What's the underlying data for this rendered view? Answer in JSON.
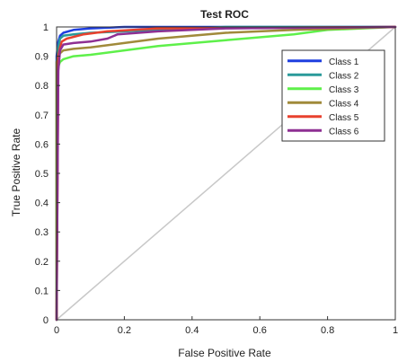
{
  "chart_data": {
    "type": "line",
    "title": "Test ROC",
    "xlabel": "False Positive Rate",
    "ylabel": "True Positive Rate",
    "xlim": [
      0,
      1
    ],
    "ylim": [
      0,
      1
    ],
    "x_ticks": [
      "0",
      "0.2",
      "0.4",
      "0.6",
      "0.8",
      "1"
    ],
    "y_ticks": [
      "0",
      "0.1",
      "0.2",
      "0.3",
      "0.4",
      "0.5",
      "0.6",
      "0.7",
      "0.8",
      "0.9",
      "1"
    ],
    "grid": false,
    "legend_position": "top-right",
    "diagonal": {
      "x": [
        0,
        1
      ],
      "y": [
        0,
        1
      ],
      "color": "#c8c8c8"
    },
    "series": [
      {
        "name": "Class 1",
        "color": "#1f3fe0",
        "x": [
          0,
          0,
          0.005,
          0.01,
          0.02,
          0.05,
          0.1,
          0.2,
          0.4,
          1
        ],
        "y": [
          0,
          0.9,
          0.95,
          0.97,
          0.98,
          0.99,
          0.995,
          1,
          1,
          1
        ]
      },
      {
        "name": "Class 2",
        "color": "#2a9a9a",
        "x": [
          0,
          0,
          0.005,
          0.01,
          0.02,
          0.05,
          0.1,
          0.3,
          0.5,
          1
        ],
        "y": [
          0,
          0.88,
          0.93,
          0.96,
          0.97,
          0.975,
          0.98,
          0.99,
          1,
          1
        ]
      },
      {
        "name": "Class 3",
        "color": "#5ef04a",
        "x": [
          0,
          0,
          0.01,
          0.02,
          0.05,
          0.1,
          0.2,
          0.3,
          0.5,
          0.7,
          0.8,
          1
        ],
        "y": [
          0,
          0.85,
          0.88,
          0.89,
          0.9,
          0.905,
          0.92,
          0.935,
          0.955,
          0.975,
          0.99,
          1
        ]
      },
      {
        "name": "Class 4",
        "color": "#a08a3a",
        "x": [
          0,
          0,
          0.01,
          0.02,
          0.05,
          0.1,
          0.2,
          0.3,
          0.5,
          0.7,
          1
        ],
        "y": [
          0,
          0.88,
          0.91,
          0.92,
          0.925,
          0.93,
          0.945,
          0.96,
          0.98,
          0.99,
          1
        ]
      },
      {
        "name": "Class 5",
        "color": "#e8412e",
        "x": [
          0,
          0.005,
          0.01,
          0.015,
          0.03,
          0.08,
          0.15,
          0.3,
          1
        ],
        "y": [
          0,
          0.9,
          0.93,
          0.95,
          0.96,
          0.975,
          0.985,
          0.995,
          1
        ]
      },
      {
        "name": "Class 6",
        "color": "#8e2f92",
        "x": [
          0,
          0.005,
          0.01,
          0.02,
          0.05,
          0.1,
          0.15,
          0.18,
          0.3,
          0.5,
          1
        ],
        "y": [
          0,
          0.85,
          0.92,
          0.94,
          0.945,
          0.95,
          0.96,
          0.975,
          0.985,
          0.995,
          1
        ]
      }
    ]
  }
}
